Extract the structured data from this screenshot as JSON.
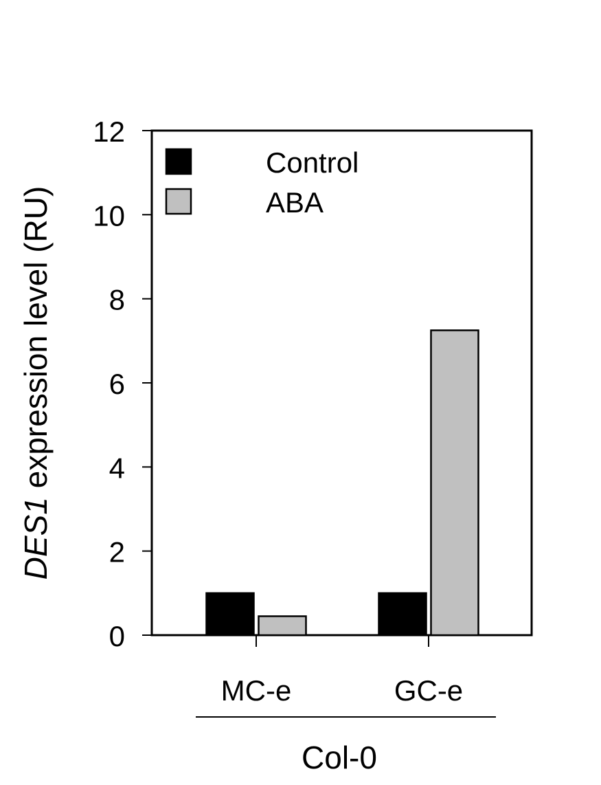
{
  "chart_data": {
    "type": "bar",
    "categories": [
      "MC-e",
      "GC-e"
    ],
    "group_label": "Col-0",
    "series": [
      {
        "name": "Control",
        "values": [
          1.0,
          1.0
        ],
        "color": "#000000"
      },
      {
        "name": "ABA",
        "values": [
          0.45,
          7.25
        ],
        "color": "#c0c0c0"
      }
    ],
    "ylabel_italic": "DES1",
    "ylabel_rest": " expression level (RU)",
    "ylim": [
      0,
      12
    ],
    "yticks": [
      "0",
      "2",
      "4",
      "6",
      "8",
      "10",
      "12"
    ],
    "legend_position": "top-left",
    "grid": false
  }
}
